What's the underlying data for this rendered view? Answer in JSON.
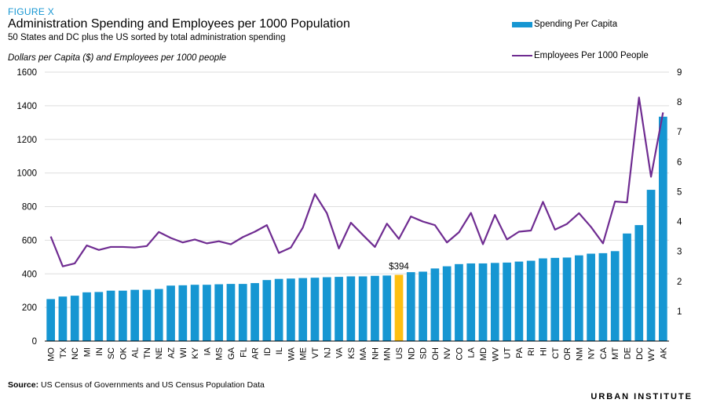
{
  "figure_label": "FIGURE X",
  "title": "Administration Spending and Employees per 1000 Population",
  "subtitle": "50 States and DC plus the US sorted by total administration spending",
  "units_label": "Dollars per Capita ($) and Employees per 1000 people",
  "legend": {
    "bars_label": "Spending Per Capita",
    "line_label": "Employees Per 1000 People"
  },
  "source_label": "Source:",
  "source_text": "US Census of Governments and US Census Population Data",
  "brand": "URBAN INSTITUTE",
  "colors": {
    "bar": "#1696d2",
    "highlight_bar": "#fdbf11",
    "line": "#6f2c91",
    "grid": "#dedede"
  },
  "chart_data": {
    "type": "bar",
    "categories": [
      "MO",
      "TX",
      "NC",
      "MI",
      "IN",
      "SC",
      "OK",
      "AL",
      "TN",
      "NE",
      "AZ",
      "WI",
      "KY",
      "IA",
      "MS",
      "GA",
      "FL",
      "AR",
      "ID",
      "IL",
      "WA",
      "ME",
      "VT",
      "NJ",
      "VA",
      "KS",
      "MA",
      "NH",
      "MN",
      "US",
      "ND",
      "SD",
      "OH",
      "NV",
      "CO",
      "LA",
      "MD",
      "WV",
      "UT",
      "PA",
      "RI",
      "HI",
      "CT",
      "OR",
      "NM",
      "NY",
      "CA",
      "MT",
      "DE",
      "DC",
      "WY",
      "AK"
    ],
    "highlight_category": "US",
    "highlight_label": "$394",
    "ylim": [
      0,
      1600
    ],
    "yticks": [
      0,
      200,
      400,
      600,
      800,
      1000,
      1200,
      1400,
      1600
    ],
    "y2lim": [
      0,
      9
    ],
    "y2ticks": [
      1,
      2,
      3,
      4,
      5,
      6,
      7,
      8,
      9
    ],
    "series": [
      {
        "name": "Spending Per Capita",
        "type": "bar",
        "axis": "left",
        "values": [
          250,
          265,
          270,
          290,
          292,
          300,
          300,
          305,
          305,
          310,
          330,
          332,
          335,
          335,
          338,
          340,
          340,
          345,
          363,
          370,
          372,
          375,
          377,
          380,
          382,
          385,
          385,
          388,
          390,
          394,
          410,
          413,
          432,
          445,
          458,
          462,
          462,
          465,
          467,
          473,
          478,
          492,
          495,
          497,
          510,
          520,
          523,
          535,
          640,
          690,
          900,
          1335
        ]
      },
      {
        "name": "Employees Per 1000 People",
        "type": "line",
        "axis": "right",
        "values": [
          3.5,
          2.5,
          2.6,
          3.2,
          3.05,
          3.15,
          3.15,
          3.13,
          3.18,
          3.65,
          3.45,
          3.3,
          3.4,
          3.27,
          3.34,
          3.24,
          3.48,
          3.66,
          3.88,
          2.95,
          3.13,
          3.8,
          4.92,
          4.28,
          3.1,
          3.96,
          3.55,
          3.15,
          3.93,
          3.42,
          4.17,
          4.0,
          3.88,
          3.3,
          3.64,
          4.29,
          3.24,
          4.22,
          3.4,
          3.66,
          3.7,
          4.66,
          3.73,
          3.92,
          4.28,
          3.82,
          3.27,
          4.67,
          4.64,
          8.15,
          5.5,
          7.65
        ]
      }
    ]
  }
}
